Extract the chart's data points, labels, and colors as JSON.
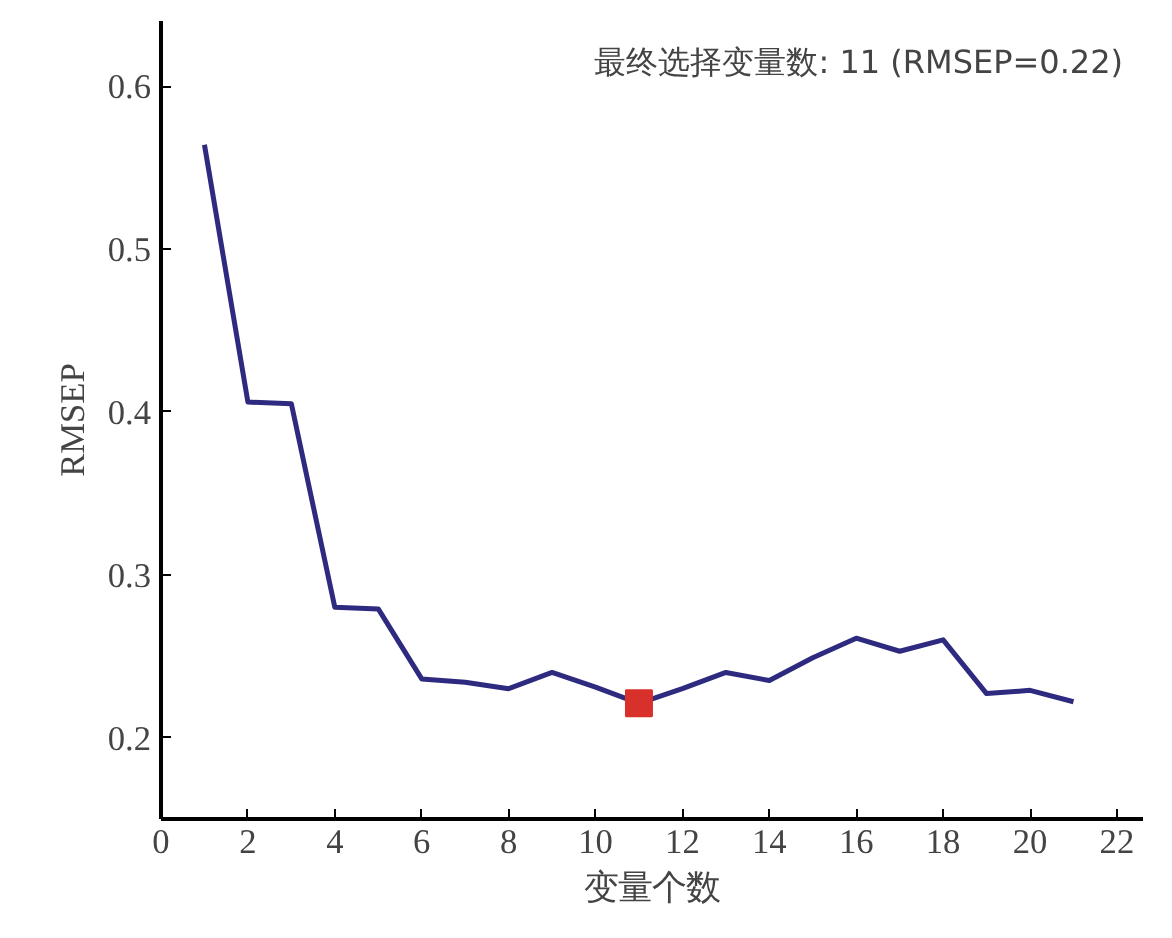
{
  "chart_data": {
    "type": "line",
    "xlabel": "变量个数",
    "ylabel": "RMSEP",
    "annotations": [
      "最终选择变量数: 11 (RMSEP=0.22)"
    ],
    "xlim": [
      0,
      22.6
    ],
    "xticks": [
      0,
      2,
      4,
      6,
      8,
      10,
      12,
      14,
      16,
      18,
      20,
      22
    ],
    "ylim": [
      0.15,
      0.64
    ],
    "yticks": [
      0.2,
      0.3,
      0.4,
      0.5,
      0.6
    ],
    "grid": false,
    "series": [
      {
        "color": "#2e2a80",
        "marker": "none",
        "line_style": "solid",
        "x": [
          1,
          2,
          3,
          4,
          5,
          6,
          7,
          8,
          9,
          10,
          11,
          12,
          13,
          14,
          15,
          16,
          17,
          18,
          19,
          20,
          21
        ],
        "values": [
          0.564,
          0.406,
          0.405,
          0.28,
          0.279,
          0.236,
          0.234,
          0.23,
          0.24,
          0.231,
          0.221,
          0.23,
          0.24,
          0.235,
          0.249,
          0.261,
          0.253,
          0.26,
          0.227,
          0.229,
          0.222
        ]
      },
      {
        "type": "scatter",
        "color": "#d8302a",
        "marker": "square",
        "x": [
          11
        ],
        "values": [
          0.221
        ]
      }
    ]
  }
}
